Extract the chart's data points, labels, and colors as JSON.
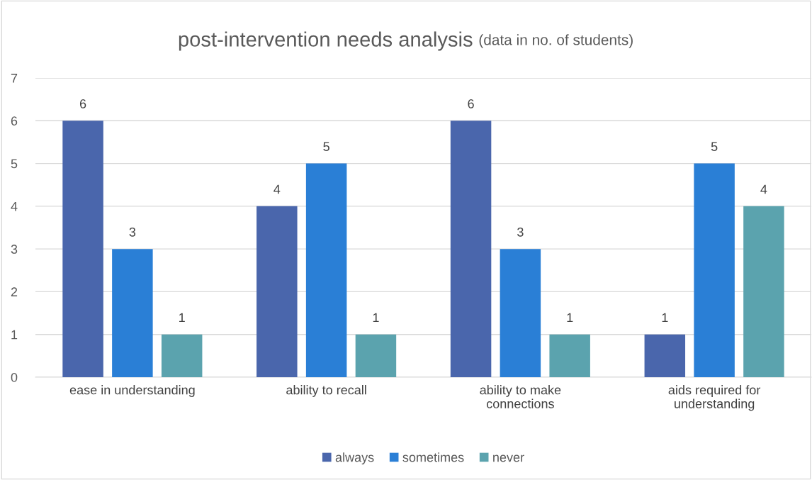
{
  "chart_data": {
    "type": "bar",
    "title": "post-intervention needs analysis",
    "subtitle": "(data in no. of students)",
    "categories": [
      "ease in understanding",
      "ability to recall",
      "ability to make\nconnections",
      "aids required for\nunderstanding"
    ],
    "series": [
      {
        "name": "always",
        "color": "#4a66ac",
        "values": [
          6,
          4,
          6,
          1
        ]
      },
      {
        "name": "sometimes",
        "color": "#2a7fd6",
        "values": [
          3,
          5,
          3,
          5
        ]
      },
      {
        "name": "never",
        "color": "#5ba3ae",
        "values": [
          1,
          1,
          1,
          4
        ]
      }
    ],
    "ylim": [
      0,
      7
    ],
    "yticks": [
      0,
      1,
      2,
      3,
      4,
      5,
      6,
      7
    ],
    "grid": "y",
    "legend": "bottom",
    "data_labels": true
  }
}
